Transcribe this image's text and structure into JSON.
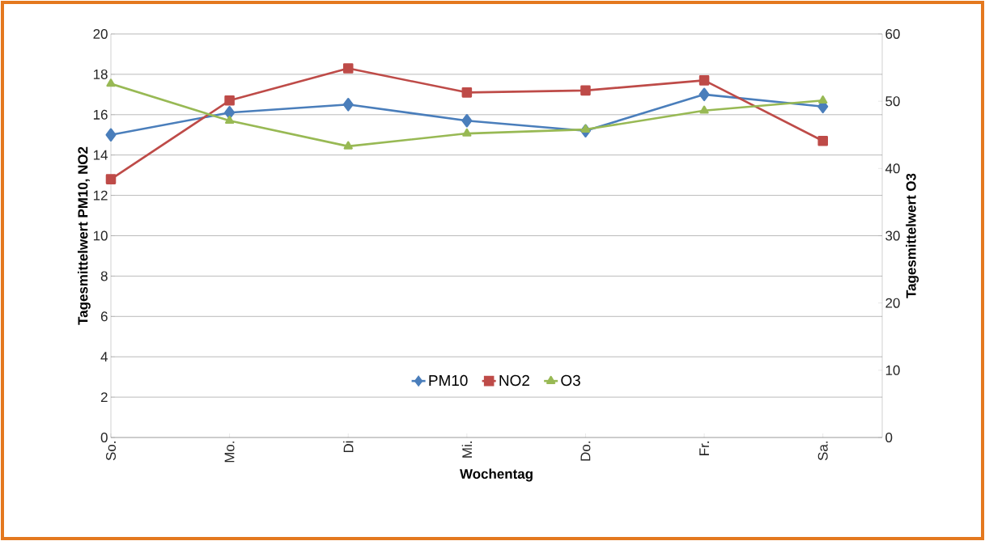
{
  "chart_data": {
    "type": "line",
    "xlabel": "Wochentag",
    "ylabel": "Tagesmittelwert PM10, NO2",
    "y2label": "Tagesmittelwert O3",
    "categories": [
      "So.",
      "Mo.",
      "Di",
      "Mi.",
      "Do.",
      "Fr.",
      "Sa."
    ],
    "series": [
      {
        "name": "PM10",
        "color": "#4a7ebb",
        "marker": "diamond",
        "values": [
          15.0,
          16.1,
          16.5,
          15.7,
          15.2,
          17.0,
          16.4
        ]
      },
      {
        "name": "NO2",
        "color": "#be4b48",
        "marker": "square",
        "values": [
          12.8,
          16.7,
          18.3,
          17.1,
          17.2,
          17.7,
          14.7
        ]
      },
      {
        "name": "O3",
        "color": "#98b954",
        "marker": "triangle",
        "axis": "y2",
        "values": [
          52.6,
          47.1,
          43.3,
          45.2,
          45.8,
          48.6,
          50.1
        ]
      }
    ],
    "ylim": [
      0,
      20
    ],
    "yticks": [
      0,
      2,
      4,
      6,
      8,
      10,
      12,
      14,
      16,
      18,
      20
    ],
    "y2lim": [
      0,
      60
    ],
    "y2ticks": [
      0,
      10,
      20,
      30,
      40,
      50,
      60
    ],
    "grid": "y",
    "legend": "bottom",
    "line_style": "solid"
  }
}
